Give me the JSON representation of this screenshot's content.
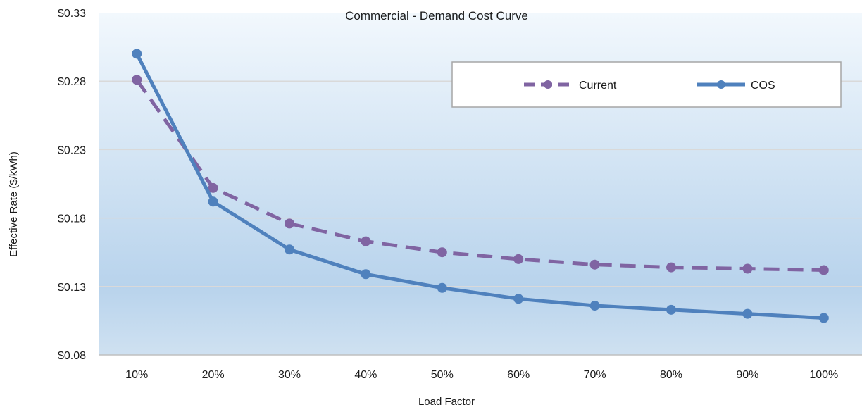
{
  "chart_data": {
    "type": "line",
    "title": "Commercial - Demand Cost Curve",
    "xlabel": "Load Factor",
    "ylabel": "Effective Rate ($/kWh)",
    "categories": [
      "10%",
      "20%",
      "30%",
      "40%",
      "50%",
      "60%",
      "70%",
      "80%",
      "90%",
      "100%"
    ],
    "ylim": [
      0.08,
      0.33
    ],
    "yticks": [
      "$0.08",
      "$0.13",
      "$0.18",
      "$0.23",
      "$0.28",
      "$0.33"
    ],
    "ytick_values": [
      0.08,
      0.13,
      0.18,
      0.23,
      0.28,
      0.33
    ],
    "grid": true,
    "legend_position": "top-right",
    "series": [
      {
        "name": "Current",
        "color": "#8064a2",
        "line_style": "dashed",
        "marker": "circle",
        "values": [
          0.281,
          0.202,
          0.176,
          0.163,
          0.155,
          0.15,
          0.146,
          0.144,
          0.143,
          0.142
        ]
      },
      {
        "name": "COS",
        "color": "#4f81bd",
        "line_style": "solid",
        "marker": "circle",
        "values": [
          0.3,
          0.192,
          0.157,
          0.139,
          0.129,
          0.121,
          0.116,
          0.113,
          0.11,
          0.107
        ]
      }
    ],
    "plot_background": [
      "#f2f8fd",
      "#b8d3ec",
      "#cfe1f1"
    ]
  }
}
